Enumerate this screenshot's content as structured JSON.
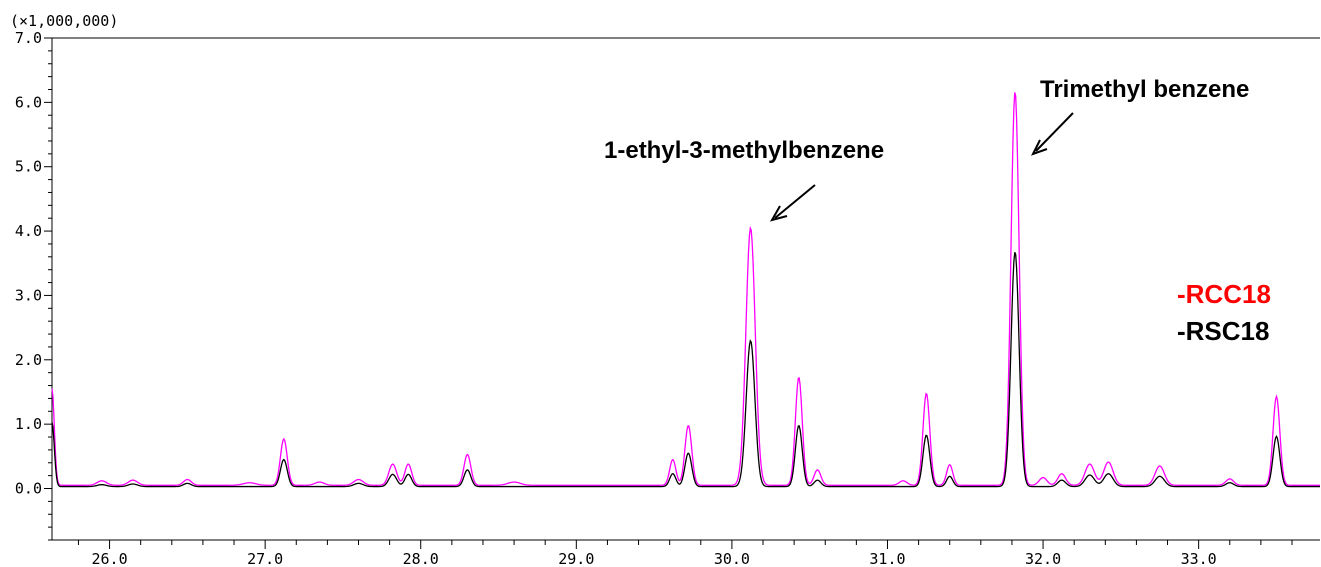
{
  "chart_data": {
    "type": "line",
    "multiplier_label": "(×1,000,000)",
    "xlim": [
      25.63,
      33.78
    ],
    "ylim": [
      -0.8,
      7.0
    ],
    "x_ticks": [
      26.0,
      27.0,
      28.0,
      29.0,
      30.0,
      31.0,
      32.0,
      33.0
    ],
    "x_tick_labels": [
      "26.0",
      "27.0",
      "28.0",
      "29.0",
      "30.0",
      "31.0",
      "32.0",
      "33.0"
    ],
    "y_ticks": [
      0.0,
      1.0,
      2.0,
      3.0,
      4.0,
      5.0,
      6.0,
      7.0
    ],
    "y_tick_labels": [
      "0.0",
      "1.0",
      "2.0",
      "3.0",
      "4.0",
      "5.0",
      "6.0",
      "7.0"
    ],
    "grid": false,
    "legend_position": "right",
    "annotations": [
      {
        "text": "1-ethyl-3-methylbenzene",
        "points_to": {
          "x": 30.12,
          "y": 4.0
        }
      },
      {
        "text": "Trimethyl benzene",
        "points_to": {
          "x": 31.83,
          "y": 6.1
        }
      }
    ],
    "series": [
      {
        "name": "-RCC18",
        "color": "#ff00ff",
        "baseline": 0.05,
        "peaks": [
          {
            "x": 25.63,
            "h": 1.5,
            "w": 0.015
          },
          {
            "x": 25.95,
            "h": 0.07,
            "w": 0.03
          },
          {
            "x": 26.15,
            "h": 0.08,
            "w": 0.03
          },
          {
            "x": 26.5,
            "h": 0.09,
            "w": 0.025
          },
          {
            "x": 26.9,
            "h": 0.04,
            "w": 0.04
          },
          {
            "x": 27.12,
            "h": 0.72,
            "w": 0.022
          },
          {
            "x": 27.35,
            "h": 0.05,
            "w": 0.03
          },
          {
            "x": 27.6,
            "h": 0.09,
            "w": 0.03
          },
          {
            "x": 27.82,
            "h": 0.33,
            "w": 0.025
          },
          {
            "x": 27.92,
            "h": 0.33,
            "w": 0.022
          },
          {
            "x": 28.3,
            "h": 0.48,
            "w": 0.022
          },
          {
            "x": 28.6,
            "h": 0.05,
            "w": 0.04
          },
          {
            "x": 29.62,
            "h": 0.4,
            "w": 0.02
          },
          {
            "x": 29.72,
            "h": 0.93,
            "w": 0.022
          },
          {
            "x": 30.12,
            "h": 4.0,
            "w": 0.03
          },
          {
            "x": 30.43,
            "h": 1.68,
            "w": 0.022
          },
          {
            "x": 30.55,
            "h": 0.24,
            "w": 0.022
          },
          {
            "x": 31.1,
            "h": 0.07,
            "w": 0.025
          },
          {
            "x": 31.25,
            "h": 1.43,
            "w": 0.022
          },
          {
            "x": 31.4,
            "h": 0.32,
            "w": 0.02
          },
          {
            "x": 31.82,
            "h": 6.12,
            "w": 0.026
          },
          {
            "x": 32.0,
            "h": 0.12,
            "w": 0.025
          },
          {
            "x": 32.12,
            "h": 0.18,
            "w": 0.025
          },
          {
            "x": 32.3,
            "h": 0.33,
            "w": 0.03
          },
          {
            "x": 32.42,
            "h": 0.36,
            "w": 0.03
          },
          {
            "x": 32.75,
            "h": 0.3,
            "w": 0.03
          },
          {
            "x": 33.2,
            "h": 0.1,
            "w": 0.025
          },
          {
            "x": 33.5,
            "h": 1.38,
            "w": 0.022
          }
        ]
      },
      {
        "name": "-RSC18",
        "color": "#000000",
        "baseline": 0.03,
        "peaks": [
          {
            "x": 25.63,
            "h": 1.0,
            "w": 0.015
          },
          {
            "x": 25.95,
            "h": 0.03,
            "w": 0.03
          },
          {
            "x": 26.15,
            "h": 0.04,
            "w": 0.03
          },
          {
            "x": 26.5,
            "h": 0.05,
            "w": 0.025
          },
          {
            "x": 27.12,
            "h": 0.42,
            "w": 0.022
          },
          {
            "x": 27.6,
            "h": 0.05,
            "w": 0.03
          },
          {
            "x": 27.82,
            "h": 0.19,
            "w": 0.025
          },
          {
            "x": 27.92,
            "h": 0.19,
            "w": 0.022
          },
          {
            "x": 28.3,
            "h": 0.26,
            "w": 0.022
          },
          {
            "x": 29.62,
            "h": 0.2,
            "w": 0.02
          },
          {
            "x": 29.72,
            "h": 0.52,
            "w": 0.022
          },
          {
            "x": 30.12,
            "h": 2.27,
            "w": 0.028
          },
          {
            "x": 30.43,
            "h": 0.95,
            "w": 0.022
          },
          {
            "x": 30.55,
            "h": 0.1,
            "w": 0.022
          },
          {
            "x": 31.25,
            "h": 0.8,
            "w": 0.022
          },
          {
            "x": 31.4,
            "h": 0.16,
            "w": 0.02
          },
          {
            "x": 31.82,
            "h": 3.65,
            "w": 0.026
          },
          {
            "x": 32.12,
            "h": 0.1,
            "w": 0.025
          },
          {
            "x": 32.3,
            "h": 0.18,
            "w": 0.03
          },
          {
            "x": 32.42,
            "h": 0.2,
            "w": 0.03
          },
          {
            "x": 32.75,
            "h": 0.16,
            "w": 0.03
          },
          {
            "x": 33.2,
            "h": 0.06,
            "w": 0.025
          },
          {
            "x": 33.5,
            "h": 0.78,
            "w": 0.022
          }
        ]
      }
    ]
  },
  "colors": {
    "legend_rcc18": "#ff0000",
    "legend_rsc18": "#000000",
    "axis": "#000000"
  }
}
